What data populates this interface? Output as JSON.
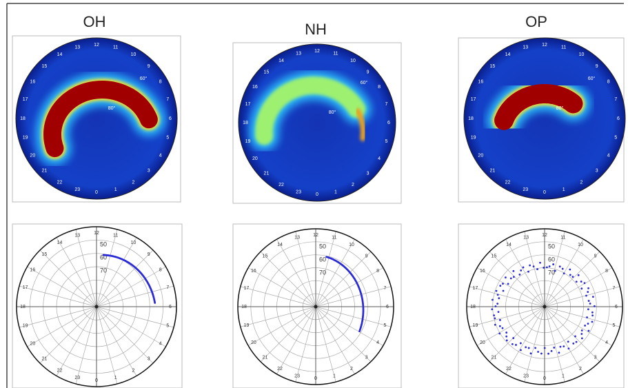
{
  "panels": [
    {
      "title": "OH"
    },
    {
      "title": "NH"
    },
    {
      "title": "OP"
    }
  ],
  "hours": [
    "0",
    "1",
    "2",
    "3",
    "4",
    "5",
    "6",
    "7",
    "8",
    "9",
    "10",
    "11",
    "12",
    "13",
    "14",
    "15",
    "16",
    "17",
    "18",
    "19",
    "20",
    "21",
    "22",
    "23"
  ],
  "top_lat_labels": [
    "80°",
    "60°"
  ],
  "bottom_lat_labels": [
    "50",
    "60",
    "70"
  ]
}
